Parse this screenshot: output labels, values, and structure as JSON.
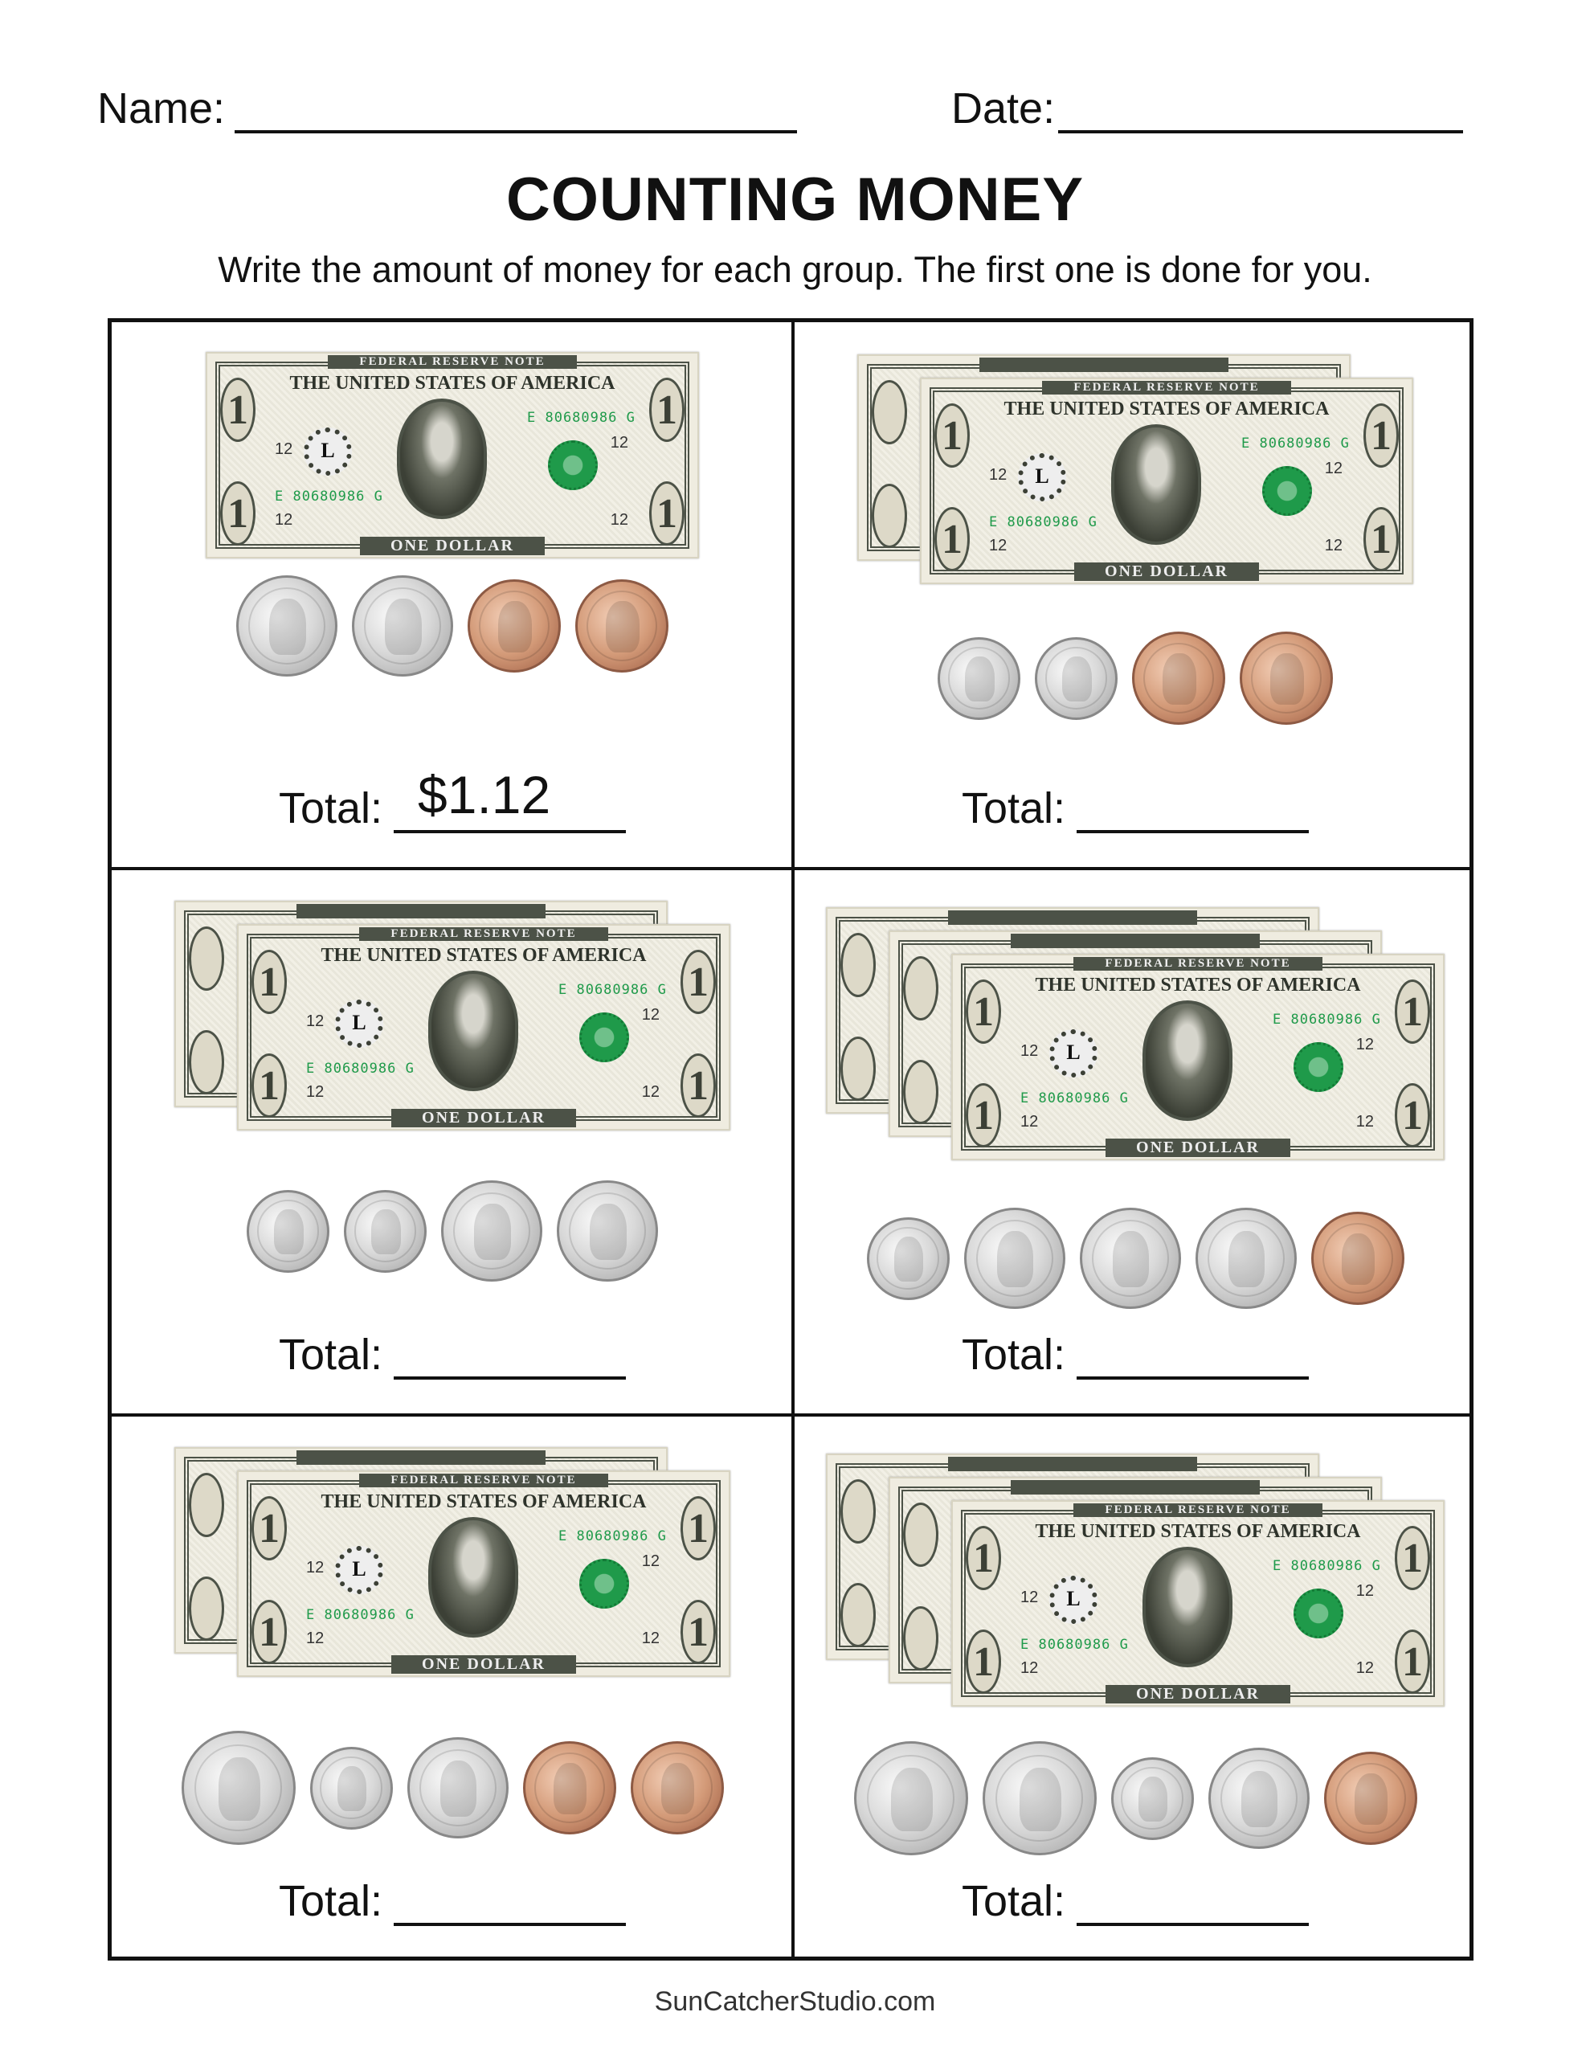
{
  "header": {
    "name_label": "Name:",
    "date_label": "Date:"
  },
  "title": "COUNTING MONEY",
  "instructions": "Write the amount of money for each group. The first one is done for you.",
  "bill": {
    "top_text": "FEDERAL RESERVE NOTE",
    "country": "THE UNITED STATES OF AMERICA",
    "bottom_text": "ONE DOLLAR",
    "serial": "E 80680986 G",
    "denomination": "1",
    "seal_letter": "L",
    "plate": "12"
  },
  "total_label": "Total:",
  "cells": [
    {
      "bills": 1,
      "coins": [
        "nickel",
        "nickel",
        "penny",
        "penny"
      ],
      "answer": "$1.12"
    },
    {
      "bills": 2,
      "coins": [
        "dime",
        "dime",
        "penny",
        "penny"
      ],
      "answer": ""
    },
    {
      "bills": 2,
      "coins": [
        "dime",
        "dime",
        "nickel",
        "nickel"
      ],
      "answer": ""
    },
    {
      "bills": 3,
      "coins": [
        "dime",
        "nickel",
        "nickel",
        "nickel",
        "penny"
      ],
      "answer": ""
    },
    {
      "bills": 2,
      "coins": [
        "quarter",
        "dime",
        "nickel",
        "penny",
        "penny"
      ],
      "answer": ""
    },
    {
      "bills": 3,
      "coins": [
        "quarter",
        "quarter",
        "dime",
        "nickel",
        "penny"
      ],
      "answer": ""
    }
  ],
  "footer": "SunCatcherStudio.com"
}
